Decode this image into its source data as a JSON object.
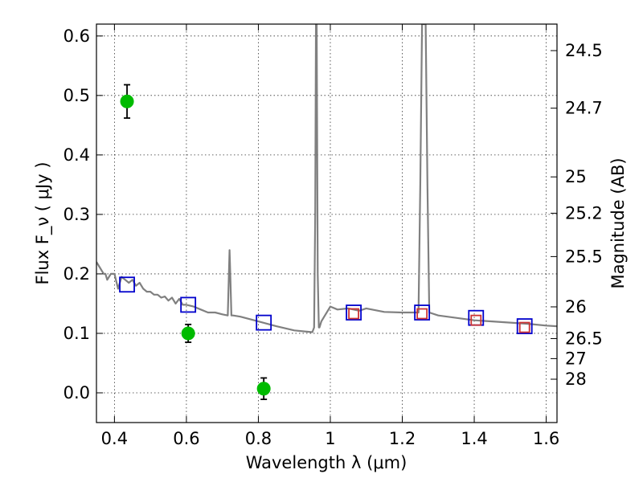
{
  "chart_data": {
    "type": "scatter",
    "title": "",
    "xlabel": "Wavelength  λ (μm)",
    "ylabel": "Flux  F_ν  ( μJy )",
    "ylabel_right": "Magnitude (AB)",
    "xlim": [
      0.35,
      1.63
    ],
    "ylim": [
      -0.05,
      0.62
    ],
    "grid": true,
    "x_ticks": [
      {
        "value": 0.4,
        "label": "0.4"
      },
      {
        "value": 0.6,
        "label": "0.6"
      },
      {
        "value": 0.8,
        "label": "0.8"
      },
      {
        "value": 1.0,
        "label": "1"
      },
      {
        "value": 1.2,
        "label": "1.2"
      },
      {
        "value": 1.4,
        "label": "1.4"
      },
      {
        "value": 1.6,
        "label": "1.6"
      }
    ],
    "y_ticks": [
      {
        "value": 0.0,
        "label": "0.0"
      },
      {
        "value": 0.1,
        "label": "0.1"
      },
      {
        "value": 0.2,
        "label": "0.2"
      },
      {
        "value": 0.3,
        "label": "0.3"
      },
      {
        "value": 0.4,
        "label": "0.4"
      },
      {
        "value": 0.5,
        "label": "0.5"
      },
      {
        "value": 0.6,
        "label": "0.6"
      }
    ],
    "right_ticks": [
      {
        "mag": 24.5,
        "label": "24.5"
      },
      {
        "mag": 24.7,
        "label": "24.7"
      },
      {
        "mag": 25,
        "label": "25"
      },
      {
        "mag": 25.2,
        "label": "25.2"
      },
      {
        "mag": 25.5,
        "label": "25.5"
      },
      {
        "mag": 26,
        "label": "26"
      },
      {
        "mag": 26.5,
        "label": "26.5"
      },
      {
        "mag": 27,
        "label": "27"
      },
      {
        "mag": 28,
        "label": "28"
      }
    ],
    "series": [
      {
        "name": "model-spectrum",
        "kind": "line",
        "color": "#808080",
        "x": [
          0.35,
          0.36,
          0.37,
          0.375,
          0.38,
          0.39,
          0.4,
          0.41,
          0.42,
          0.43,
          0.44,
          0.45,
          0.46,
          0.47,
          0.48,
          0.49,
          0.5,
          0.51,
          0.52,
          0.53,
          0.54,
          0.55,
          0.56,
          0.57,
          0.58,
          0.59,
          0.6,
          0.62,
          0.64,
          0.66,
          0.68,
          0.7,
          0.715,
          0.72,
          0.722,
          0.725,
          0.73,
          0.75,
          0.8,
          0.85,
          0.9,
          0.95,
          0.955,
          0.958,
          0.96,
          0.962,
          0.965,
          0.968,
          0.97,
          0.975,
          1.0,
          1.02,
          1.05,
          1.08,
          1.1,
          1.15,
          1.2,
          1.245,
          1.25,
          1.255,
          1.26,
          1.265,
          1.27,
          1.275,
          1.3,
          1.35,
          1.4,
          1.45,
          1.5,
          1.55,
          1.6,
          1.63
        ],
        "y": [
          0.22,
          0.21,
          0.2,
          0.2,
          0.19,
          0.2,
          0.2,
          0.175,
          0.195,
          0.19,
          0.185,
          0.19,
          0.18,
          0.185,
          0.175,
          0.17,
          0.17,
          0.165,
          0.165,
          0.16,
          0.162,
          0.155,
          0.16,
          0.15,
          0.158,
          0.148,
          0.148,
          0.145,
          0.14,
          0.135,
          0.135,
          0.132,
          0.13,
          0.24,
          0.2,
          0.13,
          0.13,
          0.128,
          0.12,
          0.112,
          0.105,
          0.102,
          0.11,
          0.3,
          0.62,
          0.62,
          0.2,
          0.11,
          0.11,
          0.12,
          0.145,
          0.14,
          0.142,
          0.138,
          0.142,
          0.136,
          0.135,
          0.135,
          0.35,
          0.62,
          0.62,
          0.62,
          0.35,
          0.135,
          0.13,
          0.126,
          0.122,
          0.12,
          0.118,
          0.116,
          0.113,
          0.112
        ]
      },
      {
        "name": "model-photometry",
        "kind": "square",
        "color": "#0000cc",
        "x": [
          0.435,
          0.605,
          0.815,
          1.065,
          1.255,
          1.405,
          1.54
        ],
        "y": [
          0.182,
          0.148,
          0.118,
          0.135,
          0.135,
          0.126,
          0.112
        ]
      },
      {
        "name": "observed-upper-points",
        "kind": "square",
        "color": "#cc3333",
        "x": [
          1.065,
          1.255,
          1.405,
          1.54
        ],
        "y": [
          0.133,
          0.133,
          0.122,
          0.11
        ]
      },
      {
        "name": "observed-photometry",
        "kind": "circle",
        "color": "#00bb00",
        "x": [
          0.435,
          0.605,
          0.815
        ],
        "y": [
          0.49,
          0.1,
          0.007
        ],
        "yerr": [
          0.028,
          0.015,
          0.018
        ]
      }
    ]
  }
}
